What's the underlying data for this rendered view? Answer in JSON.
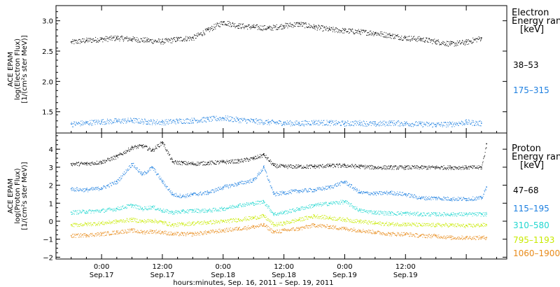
{
  "chart_data": [
    {
      "type": "scatter",
      "title": "",
      "ylabel_lines": [
        "ACE EPAM",
        "log(Electron Flux)",
        "[1/(cm²s ster MeV)]"
      ],
      "ylim": [
        1.15,
        3.25
      ],
      "yticks": [
        1.5,
        2.0,
        2.5,
        3.0
      ],
      "ytick_labels": [
        "1.5",
        "2.0",
        "2.5",
        "3.0"
      ],
      "legend_title": [
        "Electron",
        "Energy range",
        "[keV]"
      ],
      "series": [
        {
          "name": "38–53",
          "color": "#000000",
          "x": [
            0,
            3,
            6,
            9,
            12,
            15,
            18,
            21,
            24,
            27,
            30,
            33,
            36,
            39,
            42,
            45,
            48,
            51,
            54,
            57,
            60,
            63,
            66,
            69,
            72,
            75,
            78,
            81
          ],
          "y": [
            2.65,
            2.68,
            2.7,
            2.72,
            2.7,
            2.68,
            2.66,
            2.7,
            2.72,
            2.85,
            2.98,
            2.92,
            2.9,
            2.88,
            2.92,
            2.95,
            2.9,
            2.86,
            2.84,
            2.82,
            2.8,
            2.76,
            2.72,
            2.7,
            2.66,
            2.62,
            2.65,
            2.72
          ]
        },
        {
          "name": "175–315",
          "color": "#1d7fe0",
          "x": [
            0,
            3,
            6,
            9,
            12,
            15,
            18,
            21,
            24,
            27,
            30,
            33,
            36,
            39,
            42,
            45,
            48,
            51,
            54,
            57,
            60,
            63,
            66,
            69,
            72,
            75,
            78,
            81
          ],
          "y": [
            1.3,
            1.32,
            1.34,
            1.35,
            1.36,
            1.34,
            1.33,
            1.35,
            1.36,
            1.38,
            1.4,
            1.37,
            1.35,
            1.33,
            1.32,
            1.31,
            1.33,
            1.32,
            1.31,
            1.32,
            1.3,
            1.32,
            1.31,
            1.3,
            1.29,
            1.3,
            1.33,
            1.31
          ]
        }
      ]
    },
    {
      "type": "scatter",
      "title": "",
      "ylabel_lines": [
        "ACE EPAM",
        "log(Proton Flux)",
        "[1/(cm²s ster MeV)]"
      ],
      "ylim": [
        -2.1,
        4.9
      ],
      "yticks": [
        -2,
        -1,
        0,
        1,
        2,
        3,
        4
      ],
      "ytick_labels": [
        "−2",
        "−1",
        "0",
        "1",
        "2",
        "3",
        "4"
      ],
      "legend_title": [
        "Proton",
        "Energy range",
        "[keV]"
      ],
      "series": [
        {
          "name": "47–68",
          "color": "#000000",
          "x": [
            0,
            3,
            6,
            9,
            12,
            14,
            16,
            18,
            20,
            22,
            24,
            27,
            30,
            33,
            36,
            38,
            40,
            42,
            45,
            48,
            51,
            54,
            57,
            60,
            63,
            66,
            69,
            72,
            75,
            78,
            81,
            82
          ],
          "y": [
            3.2,
            3.2,
            3.3,
            3.6,
            4.1,
            4.2,
            3.95,
            4.4,
            3.3,
            3.25,
            3.2,
            3.25,
            3.3,
            3.35,
            3.5,
            3.7,
            3.1,
            3.05,
            3.05,
            3.05,
            3.1,
            3.1,
            3.05,
            3.0,
            3.0,
            3.0,
            3.0,
            3.0,
            3.0,
            3.0,
            3.0,
            4.3
          ]
        },
        {
          "name": "115–195",
          "color": "#1d7fe0",
          "x": [
            0,
            3,
            6,
            9,
            12,
            14,
            16,
            18,
            20,
            22,
            24,
            27,
            30,
            33,
            36,
            38,
            40,
            42,
            45,
            48,
            51,
            54,
            57,
            60,
            63,
            66,
            69,
            72,
            75,
            78,
            81,
            82
          ],
          "y": [
            1.8,
            1.75,
            1.85,
            2.2,
            3.2,
            2.6,
            3.0,
            2.2,
            1.5,
            1.4,
            1.5,
            1.6,
            1.9,
            2.1,
            2.3,
            3.0,
            1.5,
            1.6,
            1.7,
            1.75,
            1.9,
            2.2,
            1.6,
            1.55,
            1.6,
            1.5,
            1.3,
            1.3,
            1.25,
            1.25,
            1.3,
            1.9
          ]
        },
        {
          "name": "310–580",
          "color": "#22d7d0",
          "x": [
            0,
            3,
            6,
            9,
            12,
            14,
            16,
            18,
            20,
            22,
            24,
            27,
            30,
            33,
            36,
            38,
            40,
            42,
            45,
            48,
            51,
            54,
            57,
            60,
            63,
            66,
            69,
            72,
            75,
            78,
            81,
            82
          ],
          "y": [
            0.5,
            0.55,
            0.6,
            0.7,
            0.9,
            0.7,
            0.8,
            0.6,
            0.5,
            0.55,
            0.6,
            0.6,
            0.7,
            0.9,
            1.0,
            1.1,
            0.4,
            0.5,
            0.7,
            0.9,
            1.0,
            1.1,
            0.6,
            0.5,
            0.45,
            0.45,
            0.4,
            0.4,
            0.4,
            0.4,
            0.4,
            0.4
          ]
        },
        {
          "name": "795–1193",
          "color": "#c8ea00",
          "x": [
            0,
            3,
            6,
            9,
            12,
            14,
            16,
            18,
            20,
            22,
            24,
            27,
            30,
            33,
            36,
            38,
            40,
            42,
            45,
            48,
            51,
            54,
            57,
            60,
            63,
            66,
            69,
            72,
            75,
            78,
            81,
            82
          ],
          "y": [
            -0.2,
            -0.15,
            -0.1,
            0.0,
            0.1,
            0.0,
            0.05,
            -0.05,
            -0.2,
            -0.15,
            -0.1,
            -0.05,
            0.0,
            0.1,
            0.2,
            0.3,
            -0.2,
            -0.1,
            0.1,
            0.3,
            0.2,
            0.1,
            0.0,
            -0.1,
            -0.15,
            -0.15,
            -0.2,
            -0.2,
            -0.2,
            -0.25,
            -0.2,
            -0.2
          ]
        },
        {
          "name": "1060–1900",
          "color": "#e88b1a",
          "x": [
            0,
            3,
            6,
            9,
            12,
            14,
            16,
            18,
            20,
            22,
            24,
            27,
            30,
            33,
            36,
            38,
            40,
            42,
            45,
            48,
            51,
            54,
            57,
            60,
            63,
            66,
            69,
            72,
            75,
            78,
            81,
            82
          ],
          "y": [
            -0.8,
            -0.75,
            -0.7,
            -0.6,
            -0.5,
            -0.6,
            -0.55,
            -0.6,
            -0.7,
            -0.7,
            -0.7,
            -0.6,
            -0.5,
            -0.4,
            -0.3,
            -0.2,
            -0.6,
            -0.5,
            -0.4,
            -0.2,
            -0.3,
            -0.4,
            -0.5,
            -0.6,
            -0.7,
            -0.7,
            -0.8,
            -0.8,
            -0.9,
            -0.9,
            -0.9,
            -0.9
          ]
        }
      ]
    }
  ],
  "x_axis": {
    "xlim": [
      -3,
      86
    ],
    "major_ticks": [
      6,
      18,
      30,
      42,
      54,
      66,
      78
    ],
    "minor_ticks": [
      0,
      3,
      9,
      12,
      15,
      21,
      24,
      27,
      33,
      36,
      39,
      45,
      48,
      51,
      57,
      60,
      63,
      69,
      72,
      75,
      81,
      84
    ],
    "labels": [
      {
        "x": 6,
        "time": "0:00",
        "date": "Sep.17"
      },
      {
        "x": 18,
        "time": "12:00",
        "date": "Sep.17"
      },
      {
        "x": 30,
        "time": "0:00",
        "date": "Sep.18"
      },
      {
        "x": 42,
        "time": "12:00",
        "date": "Sep.18"
      },
      {
        "x": 54,
        "time": "0:00",
        "date": "Sep.19"
      },
      {
        "x": 66,
        "time": "12:00",
        "date": "Sep.19"
      }
    ],
    "caption": "hours:minutes, Sep. 16, 2011 – Sep. 19, 2011"
  }
}
